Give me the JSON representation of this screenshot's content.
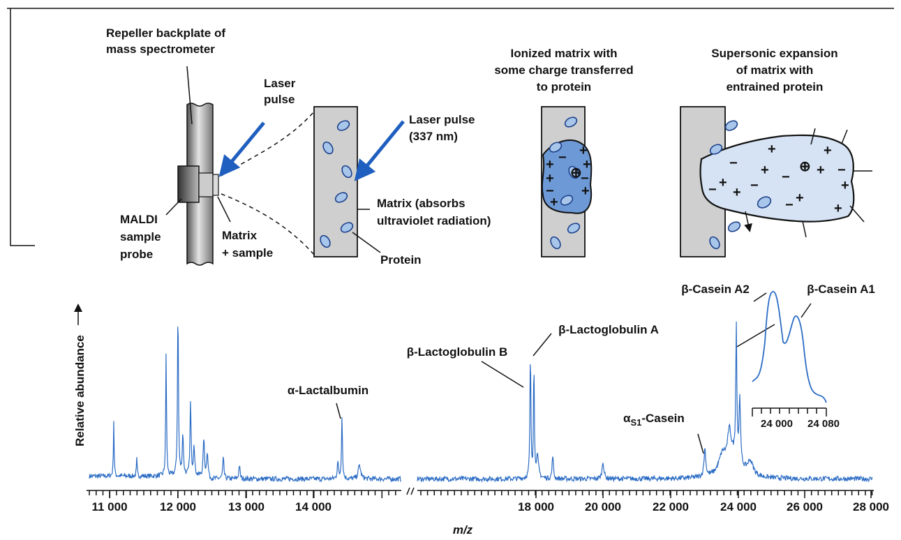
{
  "diagram": {
    "backplate_label": {
      "lines": [
        "Repeller backplate of",
        "mass spectrometer"
      ]
    },
    "laser_label": {
      "lines": [
        "Laser",
        "pulse"
      ]
    },
    "probe_label": {
      "lines": [
        "MALDI",
        "sample",
        "probe"
      ]
    },
    "matrix_sample_label": {
      "lines": [
        "Matrix",
        "+ sample"
      ]
    },
    "laser_337_label": {
      "lines": [
        "Laser pulse",
        "(337 nm)"
      ]
    },
    "matrix_label": {
      "lines": [
        "Matrix (absorbs",
        "ultraviolet radiation)"
      ]
    },
    "protein_label": "Protein",
    "ionized_label": {
      "lines": [
        "Ionized matrix with",
        "some charge transferred",
        "to protein"
      ]
    },
    "expansion_label": {
      "lines": [
        "Supersonic expansion",
        "of matrix with",
        "entrained protein"
      ]
    }
  },
  "spectrum": {
    "y_label": "Relative abundance",
    "x_label": "m/z",
    "x_tick_labels": [
      "11 000",
      "12 000",
      "13 000",
      "14 000",
      "18 000",
      "20 000",
      "22 000",
      "24 000",
      "26 000",
      "28 000"
    ],
    "peak_labels": {
      "alpha_lactalbumin": "α-Lactalbumin",
      "beta_lactoglobulin_b": "β-Lactoglobulin B",
      "beta_lactoglobulin_a": "β-Lactoglobulin A",
      "alpha_s1_casein": {
        "prefix": "α",
        "subscript": "S1",
        "suffix": "-Casein"
      },
      "beta_casein_a2": "β-Casein A2",
      "beta_casein_a1": "β-Casein A1"
    },
    "inset_tick_labels": [
      "24 000",
      "24 080"
    ]
  }
}
